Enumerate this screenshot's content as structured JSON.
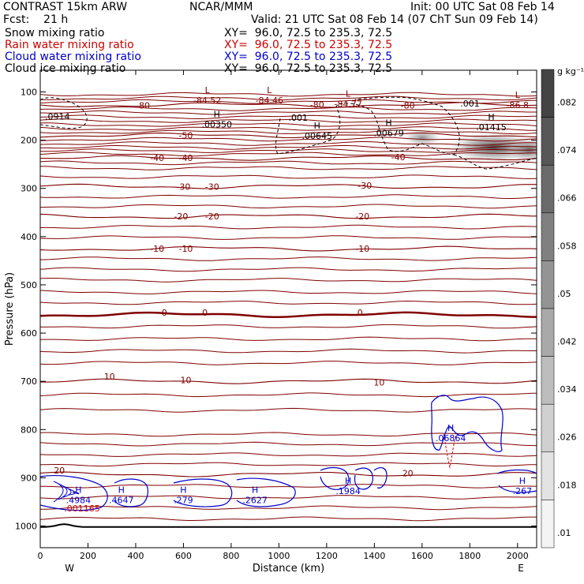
{
  "header": {
    "title": "CONTRAST 15km ARW",
    "forecast": "Fcst:    21 h",
    "center": "NCAR/MMM",
    "init": "Init: 00 UTC Sat 08 Feb 14",
    "valid": "Valid: 21 UTC Sat 08 Feb 14 (07 ChT Sun 09 Feb 14)",
    "rows": [
      {
        "field": "Snow mixing ratio",
        "xy": "XY=  96.0, 72.5 to 235.3, 72.5",
        "color": "#000000"
      },
      {
        "field": "Rain water mixing ratio",
        "xy": "XY=  96.0, 72.5 to 235.3, 72.5",
        "color": "#cc0000"
      },
      {
        "field": "Cloud water mixing ratio",
        "xy": "XY=  96.0, 72.5 to 235.3, 72.5",
        "color": "#0000cc"
      },
      {
        "field": "Cloud ice mixing ratio",
        "xy": "XY=  96.0, 72.5 to 235.3, 72.5",
        "color": "#000000"
      }
    ]
  },
  "chart_data": {
    "type": "contour",
    "xlabel": "Distance (km)",
    "ylabel": "Pressure (hPa)",
    "xlim": [
      0,
      2080
    ],
    "ylim": [
      1045,
      55
    ],
    "xticks": [
      0,
      200,
      400,
      600,
      800,
      1000,
      1200,
      1400,
      1600,
      1800,
      2000
    ],
    "yticks": [
      100,
      200,
      300,
      400,
      500,
      600,
      700,
      800,
      900,
      1000
    ],
    "x_end_labels": {
      "left": "W",
      "right": "E"
    },
    "colorbar": {
      "unit": "g kg⁻¹",
      "labels": [
        ".082",
        ".074",
        ".066",
        ".058",
        ".05",
        ".042",
        ".034",
        ".026",
        ".018",
        ".01"
      ],
      "colors": [
        "#444444",
        "#575757",
        "#6b6b6b",
        "#808080",
        "#949494",
        "#a9a9a9",
        "#bdbdbd",
        "#d0d0d0",
        "#e3e3e3",
        "#f4f4f4"
      ]
    },
    "isotherm_color": "#800000",
    "isotherms": [
      {
        "temp": -80,
        "pressure": 127,
        "labels": [
          {
            "x": 430,
            "p": 128
          },
          {
            "x": 1160,
            "p": 126
          },
          {
            "x": 1540,
            "p": 128
          }
        ]
      },
      {
        "temp": -50,
        "pressure": 190,
        "labels": [
          {
            "x": 610,
            "p": 190
          }
        ]
      },
      {
        "temp": -40,
        "pressure": 237,
        "labels": [
          {
            "x": 490,
            "p": 237
          },
          {
            "x": 610,
            "p": 237
          },
          {
            "x": 1500,
            "p": 235
          }
        ]
      },
      {
        "temp": -30,
        "pressure": 296,
        "labels": [
          {
            "x": 600,
            "p": 296
          },
          {
            "x": 720,
            "p": 296
          },
          {
            "x": 1360,
            "p": 294
          }
        ]
      },
      {
        "temp": -20,
        "pressure": 358,
        "labels": [
          {
            "x": 590,
            "p": 358
          },
          {
            "x": 720,
            "p": 358
          },
          {
            "x": 1350,
            "p": 358
          }
        ]
      },
      {
        "temp": -10,
        "pressure": 425,
        "labels": [
          {
            "x": 490,
            "p": 425
          },
          {
            "x": 610,
            "p": 425
          },
          {
            "x": 1350,
            "p": 425
          }
        ]
      },
      {
        "temp": 0,
        "pressure": 562,
        "labels": [
          {
            "x": 520,
            "p": 557
          },
          {
            "x": 690,
            "p": 557
          },
          {
            "x": 1340,
            "p": 557
          }
        ]
      },
      {
        "temp": 10,
        "pressure": 700,
        "labels": [
          {
            "x": 290,
            "p": 690
          },
          {
            "x": 610,
            "p": 697
          },
          {
            "x": 1420,
            "p": 702
          }
        ]
      },
      {
        "temp": 20,
        "pressure": 893,
        "labels": [
          {
            "x": 80,
            "p": 885
          },
          {
            "x": 1540,
            "p": 890
          }
        ]
      }
    ],
    "extra_isotherm_levels": [
      105,
      113,
      120,
      135,
      143,
      152,
      160,
      168,
      176,
      183,
      198,
      207,
      215,
      222,
      229,
      247,
      258,
      276,
      317,
      337,
      380,
      402,
      446,
      468,
      490,
      515,
      537,
      586,
      612,
      637,
      662,
      728,
      760,
      810,
      830,
      852,
      872,
      917,
      940,
      962,
      985
    ],
    "extrema": [
      {
        "kind": "L",
        "value": "-84.52",
        "x": 700,
        "p": 107
      },
      {
        "kind": "L",
        "value": "-84.46",
        "x": 960,
        "p": 107
      },
      {
        "kind": "L",
        "value": "-84.77",
        "x": 1290,
        "p": 115
      },
      {
        "kind": "L",
        "value": "-86.8",
        "x": 2000,
        "p": 117
      },
      {
        "kind": "H",
        "value": ".00350",
        "x": 740,
        "p": 157
      },
      {
        "kind": "H",
        "value": ".00645",
        "x": 1160,
        "p": 181
      },
      {
        "kind": "H",
        "value": ".00679",
        "x": 1460,
        "p": 175
      },
      {
        "kind": "H",
        "value": ".01415",
        "x": 1890,
        "p": 163
      },
      {
        "kind": "H",
        "value": ".4984",
        "x": 160,
        "p": 936
      },
      {
        "kind": "H",
        "value": ".4647",
        "x": 340,
        "p": 936
      },
      {
        "kind": "H",
        "value": ".279",
        "x": 600,
        "p": 936
      },
      {
        "kind": "H",
        "value": ".2627",
        "x": 900,
        "p": 936
      },
      {
        "kind": "H",
        "value": ".1984",
        "x": 1290,
        "p": 917
      },
      {
        "kind": "H",
        "value": ".267",
        "x": 2020,
        "p": 917
      },
      {
        "kind": "H",
        "value": ".06864",
        "x": 1720,
        "p": 808
      }
    ],
    "ice_labels": [
      {
        "value": ".0914",
        "x": 20,
        "p": 157
      },
      {
        "value": ".001",
        "x": 1040,
        "p": 160
      },
      {
        "value": ".001",
        "x": 1760,
        "p": 130
      }
    ],
    "rain_label": {
      "value": ".001165",
      "x": 100,
      "p": 970
    },
    "cloud_ice_label": ".001",
    "terrain_pressure": 1002
  }
}
